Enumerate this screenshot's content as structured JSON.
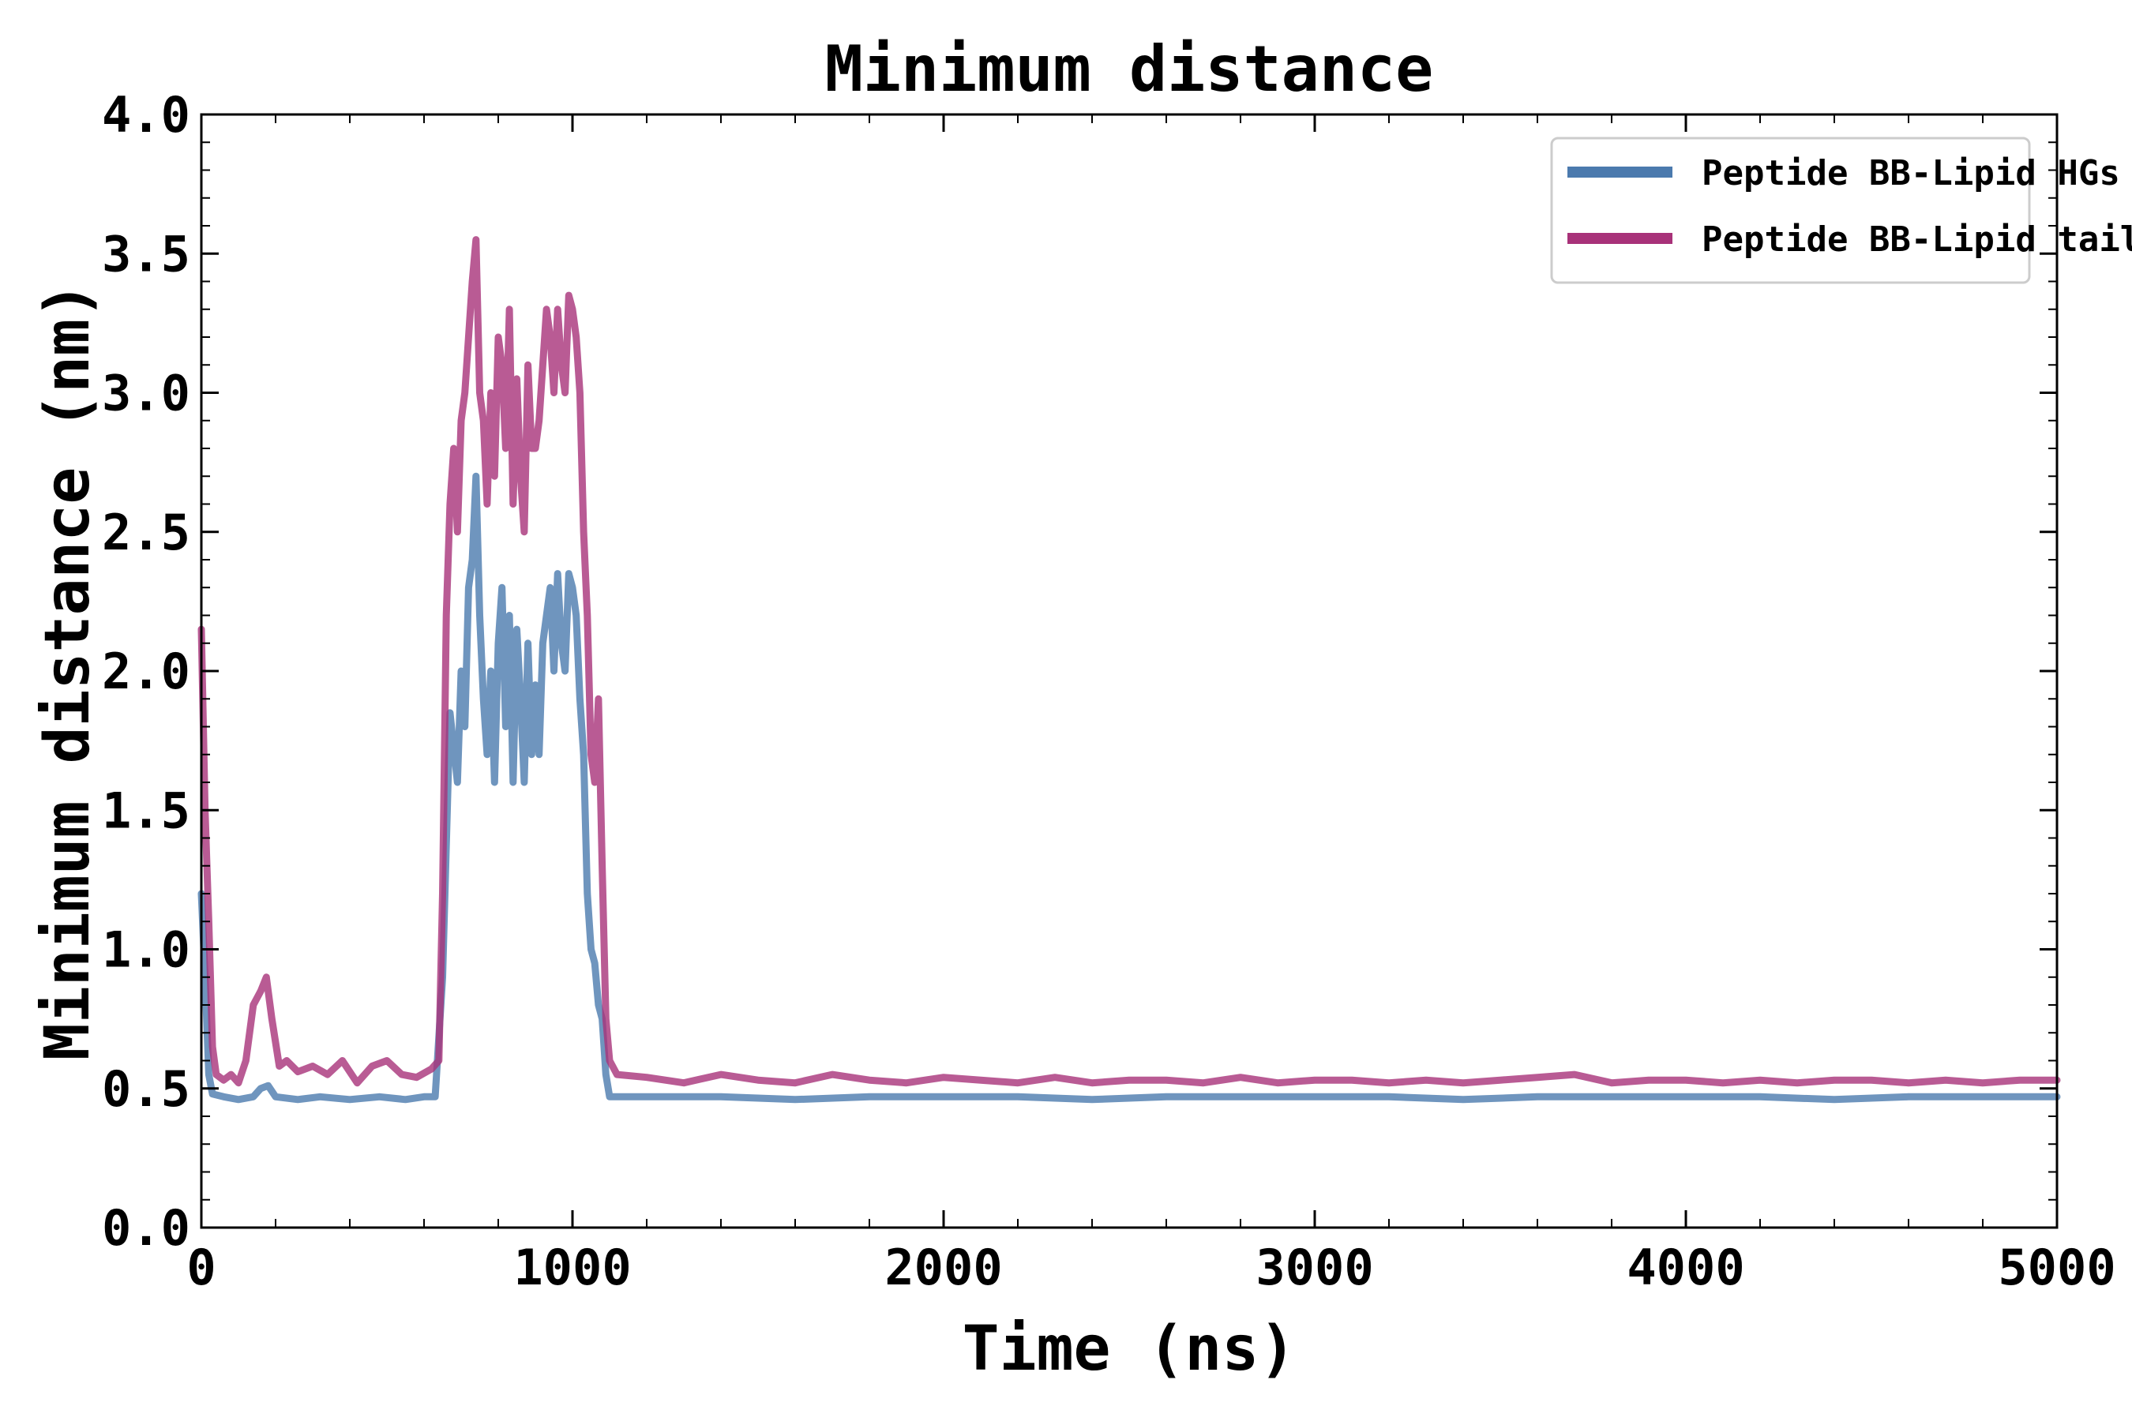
{
  "chart_data": {
    "type": "line",
    "title": "Minimum distance",
    "xlabel": "Time (ns)",
    "ylabel": "Minimum distance (nm)",
    "xlim": [
      0,
      5000
    ],
    "ylim": [
      0,
      4.0
    ],
    "x_ticks": [
      "0",
      "1000",
      "2000",
      "3000",
      "4000",
      "5000"
    ],
    "y_ticks": [
      "0.0",
      "0.5",
      "1.0",
      "1.5",
      "2.0",
      "2.5",
      "3.0",
      "3.5",
      "4.0"
    ],
    "grid": false,
    "legend_position": "top-right",
    "series": [
      {
        "name": "Peptide BB-Lipid HGs",
        "color": "#4b7aae",
        "points": [
          [
            0,
            1.2
          ],
          [
            10,
            0.9
          ],
          [
            20,
            0.55
          ],
          [
            30,
            0.48
          ],
          [
            60,
            0.47
          ],
          [
            100,
            0.46
          ],
          [
            140,
            0.47
          ],
          [
            160,
            0.5
          ],
          [
            180,
            0.51
          ],
          [
            200,
            0.47
          ],
          [
            260,
            0.46
          ],
          [
            320,
            0.47
          ],
          [
            400,
            0.46
          ],
          [
            480,
            0.47
          ],
          [
            550,
            0.46
          ],
          [
            600,
            0.47
          ],
          [
            630,
            0.47
          ],
          [
            650,
            0.9
          ],
          [
            670,
            1.85
          ],
          [
            690,
            1.6
          ],
          [
            700,
            2.0
          ],
          [
            710,
            1.8
          ],
          [
            720,
            2.3
          ],
          [
            730,
            2.4
          ],
          [
            740,
            2.7
          ],
          [
            750,
            2.2
          ],
          [
            760,
            1.9
          ],
          [
            770,
            1.7
          ],
          [
            780,
            2.0
          ],
          [
            790,
            1.6
          ],
          [
            800,
            2.1
          ],
          [
            810,
            2.3
          ],
          [
            820,
            1.8
          ],
          [
            830,
            2.2
          ],
          [
            840,
            1.6
          ],
          [
            850,
            2.15
          ],
          [
            860,
            1.9
          ],
          [
            870,
            1.6
          ],
          [
            880,
            2.1
          ],
          [
            890,
            1.7
          ],
          [
            900,
            1.95
          ],
          [
            910,
            1.7
          ],
          [
            920,
            2.1
          ],
          [
            930,
            2.2
          ],
          [
            940,
            2.3
          ],
          [
            950,
            2.0
          ],
          [
            960,
            2.35
          ],
          [
            970,
            2.1
          ],
          [
            980,
            2.0
          ],
          [
            990,
            2.35
          ],
          [
            1000,
            2.3
          ],
          [
            1010,
            2.2
          ],
          [
            1020,
            1.9
          ],
          [
            1030,
            1.7
          ],
          [
            1040,
            1.2
          ],
          [
            1050,
            1.0
          ],
          [
            1060,
            0.95
          ],
          [
            1070,
            0.8
          ],
          [
            1080,
            0.75
          ],
          [
            1090,
            0.55
          ],
          [
            1100,
            0.47
          ],
          [
            1200,
            0.47
          ],
          [
            1400,
            0.47
          ],
          [
            1600,
            0.46
          ],
          [
            1800,
            0.47
          ],
          [
            2000,
            0.47
          ],
          [
            2200,
            0.47
          ],
          [
            2400,
            0.46
          ],
          [
            2600,
            0.47
          ],
          [
            2800,
            0.47
          ],
          [
            3000,
            0.47
          ],
          [
            3200,
            0.47
          ],
          [
            3400,
            0.46
          ],
          [
            3600,
            0.47
          ],
          [
            3800,
            0.47
          ],
          [
            4000,
            0.47
          ],
          [
            4200,
            0.47
          ],
          [
            4400,
            0.46
          ],
          [
            4600,
            0.47
          ],
          [
            4800,
            0.47
          ],
          [
            5000,
            0.47
          ]
        ]
      },
      {
        "name": "Peptide BB-Lipid tails",
        "color": "#a83279",
        "points": [
          [
            0,
            2.15
          ],
          [
            10,
            1.5
          ],
          [
            20,
            1.1
          ],
          [
            30,
            0.65
          ],
          [
            40,
            0.55
          ],
          [
            60,
            0.53
          ],
          [
            80,
            0.55
          ],
          [
            100,
            0.52
          ],
          [
            120,
            0.6
          ],
          [
            140,
            0.8
          ],
          [
            160,
            0.85
          ],
          [
            175,
            0.9
          ],
          [
            190,
            0.75
          ],
          [
            210,
            0.58
          ],
          [
            230,
            0.6
          ],
          [
            260,
            0.56
          ],
          [
            300,
            0.58
          ],
          [
            340,
            0.55
          ],
          [
            380,
            0.6
          ],
          [
            420,
            0.52
          ],
          [
            460,
            0.58
          ],
          [
            500,
            0.6
          ],
          [
            540,
            0.55
          ],
          [
            580,
            0.54
          ],
          [
            620,
            0.57
          ],
          [
            640,
            0.6
          ],
          [
            650,
            1.2
          ],
          [
            660,
            2.2
          ],
          [
            670,
            2.6
          ],
          [
            680,
            2.8
          ],
          [
            690,
            2.5
          ],
          [
            700,
            2.9
          ],
          [
            710,
            3.0
          ],
          [
            720,
            3.2
          ],
          [
            730,
            3.4
          ],
          [
            740,
            3.55
          ],
          [
            750,
            3.0
          ],
          [
            760,
            2.9
          ],
          [
            770,
            2.6
          ],
          [
            780,
            3.0
          ],
          [
            790,
            2.7
          ],
          [
            800,
            3.2
          ],
          [
            810,
            3.1
          ],
          [
            820,
            2.8
          ],
          [
            830,
            3.3
          ],
          [
            840,
            2.6
          ],
          [
            850,
            3.05
          ],
          [
            860,
            2.7
          ],
          [
            870,
            2.5
          ],
          [
            880,
            3.1
          ],
          [
            890,
            2.8
          ],
          [
            900,
            2.8
          ],
          [
            910,
            2.9
          ],
          [
            920,
            3.1
          ],
          [
            930,
            3.3
          ],
          [
            940,
            3.2
          ],
          [
            950,
            3.0
          ],
          [
            960,
            3.3
          ],
          [
            970,
            3.1
          ],
          [
            980,
            3.0
          ],
          [
            990,
            3.35
          ],
          [
            1000,
            3.3
          ],
          [
            1010,
            3.2
          ],
          [
            1020,
            3.0
          ],
          [
            1030,
            2.5
          ],
          [
            1040,
            2.2
          ],
          [
            1050,
            1.7
          ],
          [
            1060,
            1.6
          ],
          [
            1070,
            1.9
          ],
          [
            1080,
            1.3
          ],
          [
            1090,
            0.75
          ],
          [
            1100,
            0.6
          ],
          [
            1120,
            0.55
          ],
          [
            1200,
            0.54
          ],
          [
            1300,
            0.52
          ],
          [
            1400,
            0.55
          ],
          [
            1500,
            0.53
          ],
          [
            1600,
            0.52
          ],
          [
            1700,
            0.55
          ],
          [
            1800,
            0.53
          ],
          [
            1900,
            0.52
          ],
          [
            2000,
            0.54
          ],
          [
            2100,
            0.53
          ],
          [
            2200,
            0.52
          ],
          [
            2300,
            0.54
          ],
          [
            2400,
            0.52
          ],
          [
            2500,
            0.53
          ],
          [
            2600,
            0.53
          ],
          [
            2700,
            0.52
          ],
          [
            2800,
            0.54
          ],
          [
            2900,
            0.52
          ],
          [
            3000,
            0.53
          ],
          [
            3100,
            0.53
          ],
          [
            3200,
            0.52
          ],
          [
            3300,
            0.53
          ],
          [
            3400,
            0.52
          ],
          [
            3500,
            0.53
          ],
          [
            3600,
            0.54
          ],
          [
            3700,
            0.55
          ],
          [
            3800,
            0.52
          ],
          [
            3900,
            0.53
          ],
          [
            4000,
            0.53
          ],
          [
            4100,
            0.52
          ],
          [
            4200,
            0.53
          ],
          [
            4300,
            0.52
          ],
          [
            4400,
            0.53
          ],
          [
            4500,
            0.53
          ],
          [
            4600,
            0.52
          ],
          [
            4700,
            0.53
          ],
          [
            4800,
            0.52
          ],
          [
            4900,
            0.53
          ],
          [
            5000,
            0.53
          ]
        ]
      }
    ]
  }
}
